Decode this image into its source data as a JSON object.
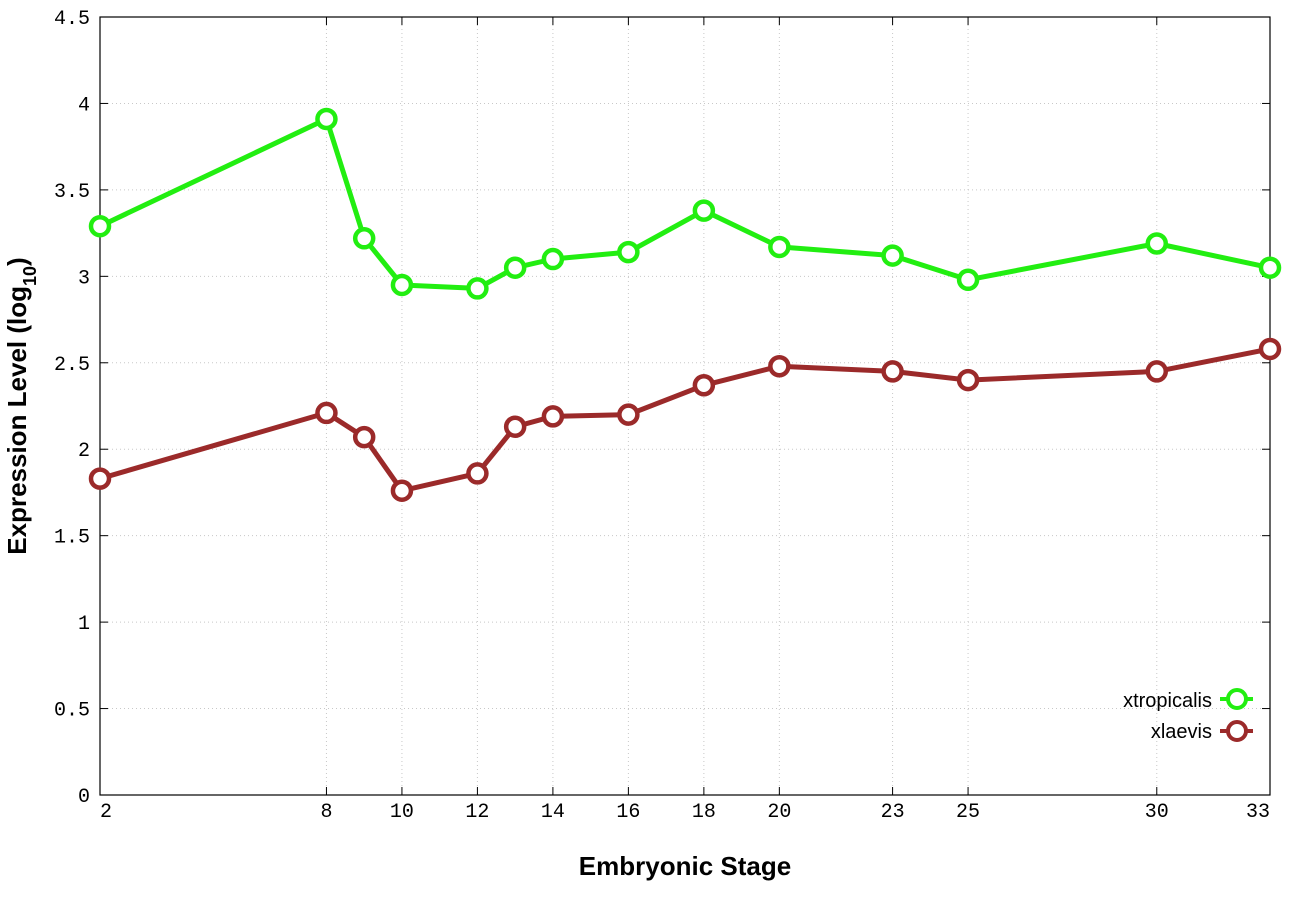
{
  "chart_data": {
    "type": "line",
    "xlabel": "Embryonic Stage",
    "ylabel": "Expression Level (log",
    "ylabel_sub": "10",
    "ylabel_close": ")",
    "ylim": [
      0,
      4.5
    ],
    "yticks": [
      0,
      0.5,
      1,
      1.5,
      2,
      2.5,
      3,
      3.5,
      4,
      4.5
    ],
    "ytick_labels": [
      "0",
      "0.5",
      "1",
      "1.5",
      "2",
      "2.5",
      "3",
      "3.5",
      "4",
      "4.5"
    ],
    "x": [
      2,
      8,
      9,
      10,
      12,
      13,
      14,
      16,
      18,
      20,
      23,
      25,
      30,
      33
    ],
    "xticks": [
      2,
      8,
      10,
      12,
      14,
      16,
      18,
      20,
      23,
      25,
      30,
      33
    ],
    "xtick_labels": [
      "2",
      "8",
      "10",
      "12",
      "14",
      "16",
      "18",
      "20",
      "23",
      "25",
      "30",
      "33"
    ],
    "grid": true,
    "legend_position": "bottom-right",
    "series": [
      {
        "name": "xtropicalis",
        "color": "#22ee11",
        "marker": "open-circle",
        "values": [
          3.29,
          3.91,
          3.22,
          2.95,
          2.93,
          3.05,
          3.1,
          3.14,
          3.38,
          3.17,
          3.12,
          2.98,
          3.19,
          3.05
        ]
      },
      {
        "name": "xlaevis",
        "color": "#9b2a2a",
        "marker": "open-circle",
        "values": [
          1.83,
          2.21,
          2.07,
          1.76,
          1.86,
          2.13,
          2.19,
          2.2,
          2.37,
          2.48,
          2.45,
          2.4,
          2.45,
          2.58
        ]
      }
    ]
  }
}
